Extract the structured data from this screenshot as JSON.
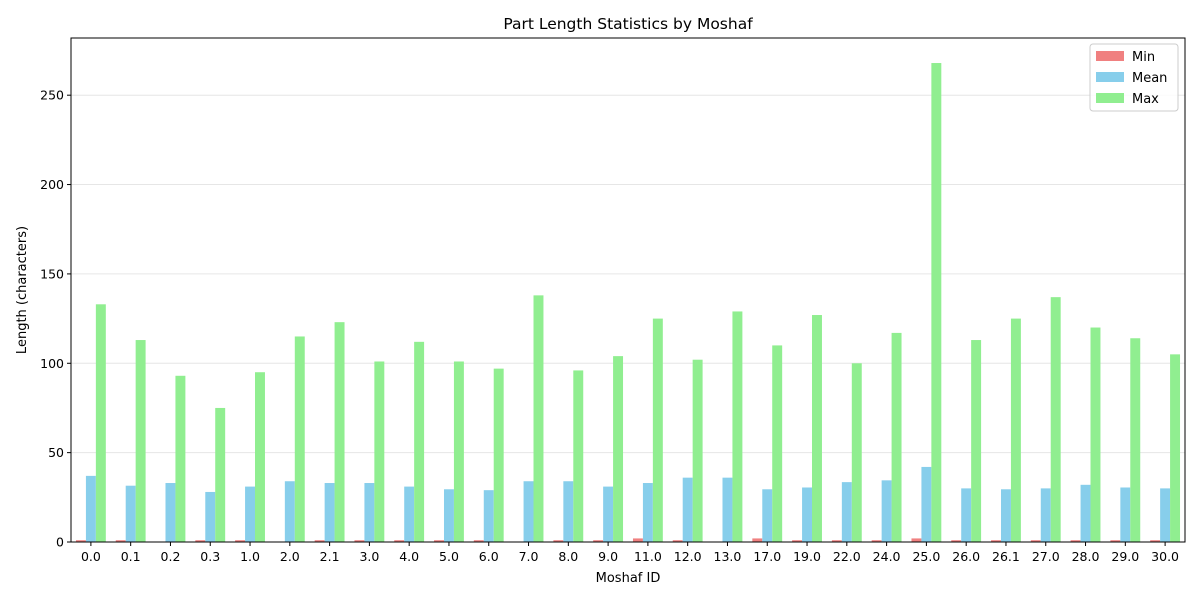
{
  "chart_data": {
    "type": "bar",
    "title": "Part Length Statistics by Moshaf",
    "xlabel": "Moshaf ID",
    "ylabel": "Length (characters)",
    "ylim": [
      0,
      282
    ],
    "yticks": [
      0,
      50,
      100,
      150,
      200,
      250
    ],
    "grid": "y",
    "legend_position": "top-right",
    "categories": [
      "0.0",
      "0.1",
      "0.2",
      "0.3",
      "1.0",
      "2.0",
      "2.1",
      "3.0",
      "4.0",
      "5.0",
      "6.0",
      "7.0",
      "8.0",
      "9.0",
      "11.0",
      "12.0",
      "13.0",
      "17.0",
      "19.0",
      "22.0",
      "24.0",
      "25.0",
      "26.0",
      "26.1",
      "27.0",
      "28.0",
      "29.0",
      "30.0"
    ],
    "series": [
      {
        "name": "Min",
        "color": "#f08080",
        "values": [
          1,
          1,
          0,
          1,
          1,
          0,
          1,
          1,
          1,
          1,
          1,
          0,
          1,
          1,
          2,
          1,
          0,
          2,
          1,
          1,
          1,
          2,
          1,
          1,
          1,
          1,
          1,
          1
        ]
      },
      {
        "name": "Mean",
        "color": "#87ceeb",
        "values": [
          37,
          31.5,
          33,
          28,
          31,
          34,
          33,
          33,
          31,
          29.5,
          29,
          34,
          34,
          31,
          33,
          36,
          36,
          29.5,
          30.5,
          33.5,
          34.5,
          42,
          30,
          29.5,
          30,
          32,
          30.5,
          30
        ]
      },
      {
        "name": "Max",
        "color": "#90ee90",
        "values": [
          133,
          113,
          93,
          75,
          95,
          115,
          123,
          101,
          112,
          101,
          97,
          138,
          96,
          104,
          125,
          102,
          129,
          110,
          127,
          100,
          117,
          268,
          113,
          125,
          137,
          120,
          114,
          105
        ]
      }
    ]
  }
}
